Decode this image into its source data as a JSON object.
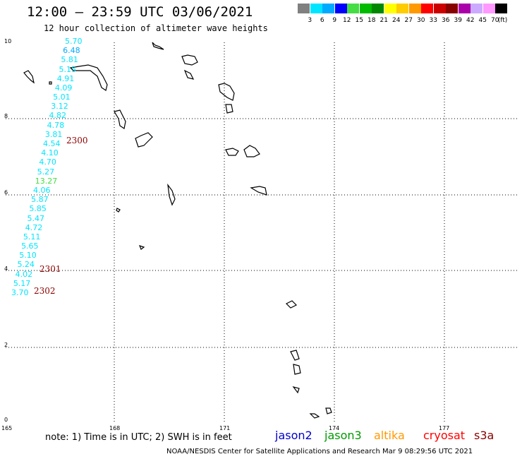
{
  "header": {
    "title": "12:00 — 23:59 UTC 03/06/2021",
    "subtitle": "12 hour collection of altimeter wave heights"
  },
  "color_scale": {
    "labels": [
      "3",
      "6",
      "9",
      "12",
      "15",
      "18",
      "21",
      "24",
      "27",
      "30",
      "33",
      "36",
      "39",
      "42",
      "45",
      "70"
    ],
    "unit": "(ft)",
    "colors": [
      "#808080",
      "#00e5ff",
      "#00aaff",
      "#0000ff",
      "#44dd44",
      "#00bb00",
      "#008800",
      "#ffff00",
      "#ffcc00",
      "#ff9900",
      "#ff0000",
      "#cc0000",
      "#880000",
      "#aa00aa",
      "#ccaaff",
      "#ff99ff",
      "#000000"
    ]
  },
  "axes": {
    "lon_labels": [
      "165",
      "168",
      "171",
      "174",
      "177"
    ],
    "lat_labels": [
      "10",
      "8",
      "6",
      "4",
      "2",
      "0"
    ]
  },
  "observations": [
    {
      "v": "5.70",
      "c": "#00e5ff"
    },
    {
      "v": "6.48",
      "c": "#00aaff"
    },
    {
      "v": "5.81",
      "c": "#00e5ff"
    },
    {
      "v": "5.15",
      "c": "#00e5ff"
    },
    {
      "v": "4.91",
      "c": "#00e5ff"
    },
    {
      "v": "4.09",
      "c": "#00e5ff"
    },
    {
      "v": "5.01",
      "c": "#00e5ff"
    },
    {
      "v": "3.12",
      "c": "#00e5ff"
    },
    {
      "v": "4.82",
      "c": "#00e5ff"
    },
    {
      "v": "4.78",
      "c": "#00e5ff"
    },
    {
      "v": "3.81",
      "c": "#00e5ff"
    },
    {
      "v": "4.54",
      "c": "#00e5ff"
    },
    {
      "v": "4.10",
      "c": "#00e5ff"
    },
    {
      "v": "4.70",
      "c": "#00e5ff"
    },
    {
      "v": "5.27",
      "c": "#00e5ff"
    },
    {
      "v": "13.27",
      "c": "#44dd44"
    },
    {
      "v": "4.06",
      "c": "#00e5ff"
    },
    {
      "v": "5.87",
      "c": "#00e5ff"
    },
    {
      "v": "5.85",
      "c": "#00e5ff"
    },
    {
      "v": "5.47",
      "c": "#00e5ff"
    },
    {
      "v": "4.72",
      "c": "#00e5ff"
    },
    {
      "v": "5.11",
      "c": "#00e5ff"
    },
    {
      "v": "5.65",
      "c": "#00e5ff"
    },
    {
      "v": "5.10",
      "c": "#00e5ff"
    },
    {
      "v": "5.24",
      "c": "#00e5ff"
    },
    {
      "v": "4.02",
      "c": "#00e5ff"
    },
    {
      "v": "5.17",
      "c": "#00e5ff"
    },
    {
      "v": "3.70",
      "c": "#00e5ff"
    }
  ],
  "pass_times": [
    "2300",
    "2301",
    "2302"
  ],
  "note": "note:  1) Time is in UTC; 2) SWH is in feet",
  "satellites": [
    {
      "name": "jason2",
      "color": "#0000cc"
    },
    {
      "name": "jason3",
      "color": "#009900"
    },
    {
      "name": "altika",
      "color": "#ff9900"
    },
    {
      "name": "cryosat",
      "color": "#ff0000"
    },
    {
      "name": "s3a",
      "color": "#8b0000"
    }
  ],
  "footer": "NOAA/NESDIS Center for Satellite Applications and Research    Mar  9 08:29:56 UTC 2021"
}
